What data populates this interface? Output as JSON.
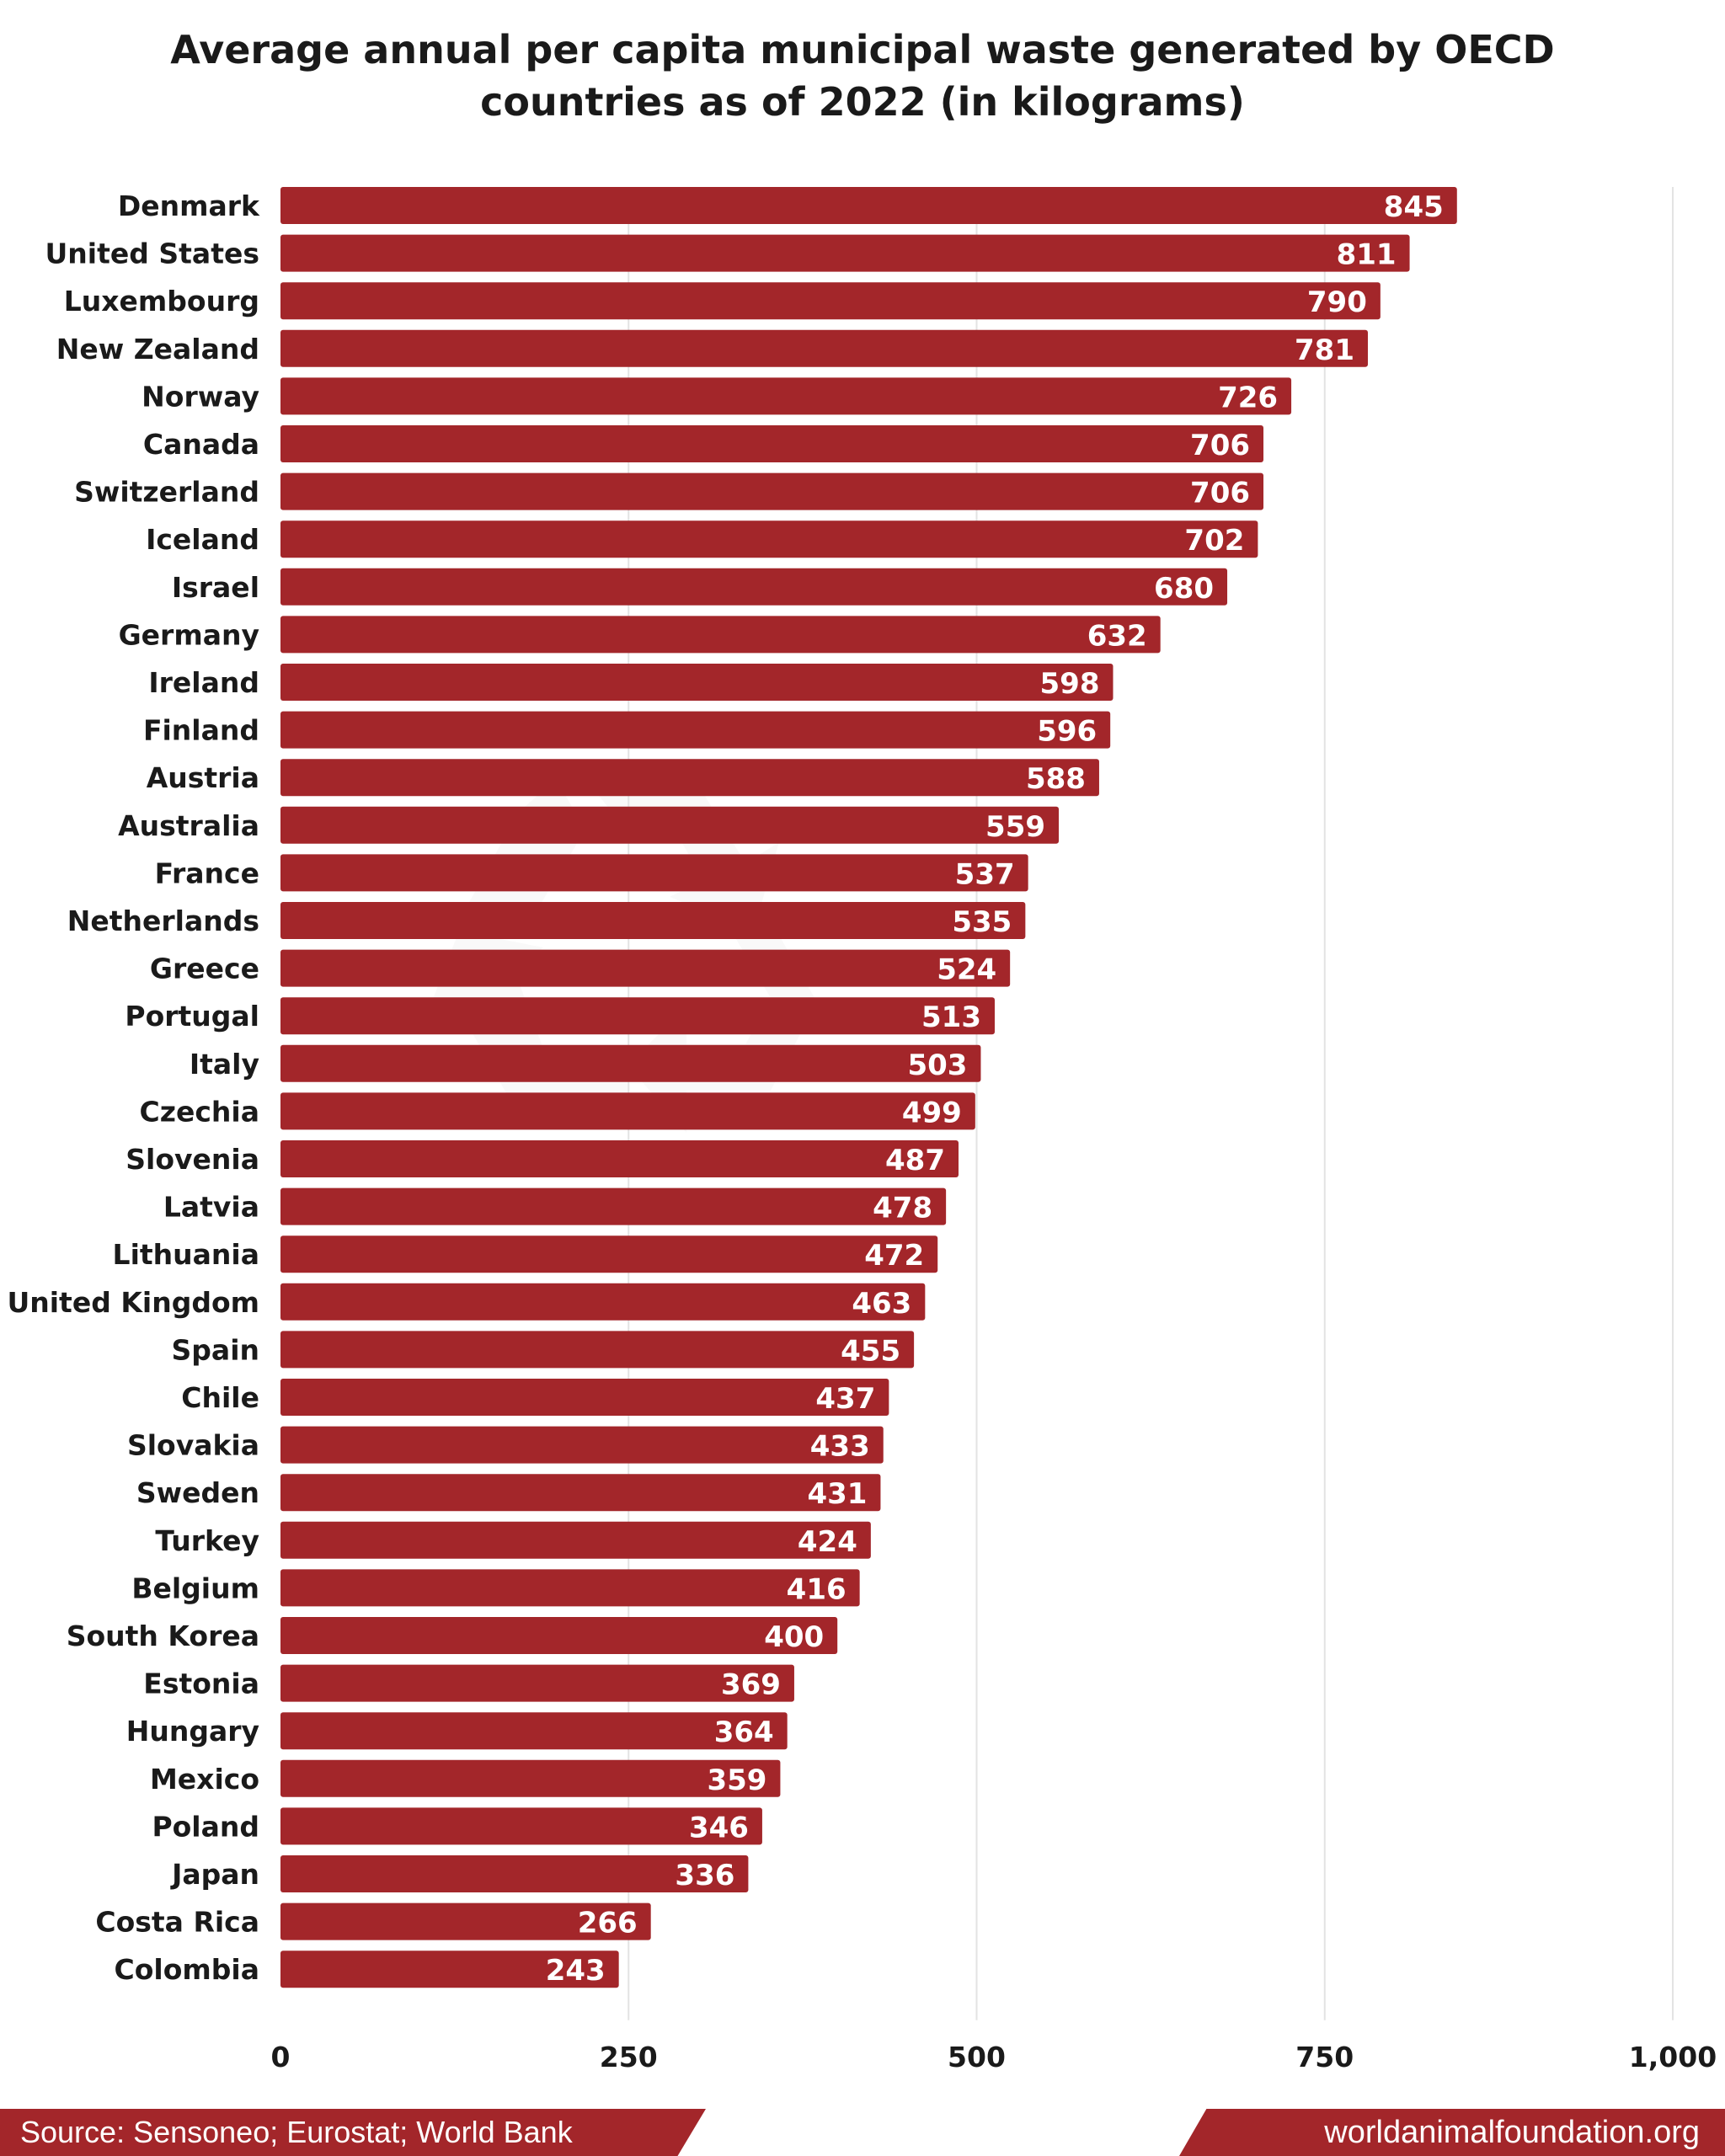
{
  "chart_data": {
    "type": "bar",
    "orientation": "horizontal",
    "title_line1": "Average annual per capita municipal waste generated by OECD",
    "title_line2": "countries as of 2022 (in kilograms)",
    "categories": [
      "Denmark",
      "United States",
      "Luxembourg",
      "New Zealand",
      "Norway",
      "Canada",
      "Switzerland",
      "Iceland",
      "Israel",
      "Germany",
      "Ireland",
      "Finland",
      "Austria",
      "Australia",
      "France",
      "Netherlands",
      "Greece",
      "Portugal",
      "Italy",
      "Czechia",
      "Slovenia",
      "Latvia",
      "Lithuania",
      "United Kingdom",
      "Spain",
      "Chile",
      "Slovakia",
      "Sweden",
      "Turkey",
      "Belgium",
      "South Korea",
      "Estonia",
      "Hungary",
      "Mexico",
      "Poland",
      "Japan",
      "Costa Rica",
      "Colombia"
    ],
    "values": [
      845,
      811,
      790,
      781,
      726,
      706,
      706,
      702,
      680,
      632,
      598,
      596,
      588,
      559,
      537,
      535,
      524,
      513,
      503,
      499,
      487,
      478,
      472,
      463,
      455,
      437,
      433,
      431,
      424,
      416,
      400,
      369,
      364,
      359,
      346,
      336,
      266,
      243
    ],
    "xlim": [
      0,
      1000
    ],
    "x_ticks": [
      "0",
      "250",
      "500",
      "750",
      "1,000"
    ],
    "grid": true,
    "bar_color": "#a3262a",
    "watermark": "recycle-icon"
  },
  "footer": {
    "source": "Source:  Sensoneo; Eurostat; World Bank",
    "website": "worldanimalfoundation.org"
  }
}
